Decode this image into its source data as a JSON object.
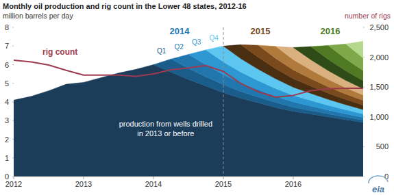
{
  "chart_data": {
    "type": "area",
    "title": "Monthly oil production and rig count in the Lower 48 states, 2012-16",
    "ylabel": "million barrels per day",
    "y2label": "number of rigs",
    "x": [
      2012,
      2012.25,
      2012.5,
      2012.75,
      2013,
      2013.25,
      2013.5,
      2013.75,
      2014,
      2014.25,
      2014.5,
      2014.75,
      2015,
      2015.25,
      2015.5,
      2015.75,
      2016,
      2016.25,
      2016.5,
      2016.75,
      2017
    ],
    "xlim": [
      2012,
      2017
    ],
    "xticks": [
      2012,
      2013,
      2014,
      2015,
      2016
    ],
    "ylim": [
      0,
      8
    ],
    "yticks": [
      0,
      1,
      2,
      3,
      4,
      5,
      6,
      7,
      8
    ],
    "y2lim": [
      0,
      2500
    ],
    "y2ticks": [
      0,
      500,
      {
        "value": 1000,
        "label": "1,000"
      },
      {
        "value": 1500,
        "label": "1,500"
      },
      {
        "value": 2000,
        "label": "2,000"
      },
      {
        "value": 2500,
        "label": "2,500"
      }
    ],
    "stacked": true,
    "grid": false,
    "series": [
      {
        "name": "production from wells drilled in 2013 or before",
        "color": "#1c3d5a",
        "values": [
          4.1,
          4.3,
          4.6,
          4.95,
          5.05,
          5.3,
          5.55,
          5.75,
          6.0,
          5.6,
          5.2,
          4.85,
          4.5,
          4.2,
          3.95,
          3.7,
          3.5,
          3.35,
          3.2,
          3.05,
          2.9
        ]
      },
      {
        "name": "Q1",
        "color": "#1a5c8a",
        "values": [
          null,
          null,
          null,
          null,
          null,
          null,
          null,
          null,
          0,
          0.7,
          0.6,
          0.5,
          0.43,
          0.36,
          0.31,
          0.27,
          0.22,
          0.19,
          0.16,
          0.14,
          0.12
        ]
      },
      {
        "name": "Q2",
        "color": "#2177ad",
        "values": [
          null,
          null,
          null,
          null,
          null,
          null,
          null,
          null,
          null,
          0,
          0.75,
          0.64,
          0.54,
          0.46,
          0.39,
          0.33,
          0.28,
          0.24,
          0.2,
          0.17,
          0.15
        ]
      },
      {
        "name": "Q3",
        "color": "#2d97d2",
        "values": [
          null,
          null,
          null,
          null,
          null,
          null,
          null,
          null,
          null,
          null,
          0,
          0.8,
          0.68,
          0.58,
          0.49,
          0.42,
          0.35,
          0.3,
          0.26,
          0.22,
          0.19
        ]
      },
      {
        "name": "Q4",
        "color": "#5cc6f0",
        "values": [
          null,
          null,
          null,
          null,
          null,
          null,
          null,
          null,
          null,
          null,
          null,
          0,
          0.85,
          0.72,
          0.61,
          0.52,
          0.44,
          0.38,
          0.32,
          0.27,
          0.23
        ]
      },
      {
        "color": "#4a2e12",
        "values": [
          null,
          null,
          null,
          null,
          null,
          null,
          null,
          null,
          null,
          null,
          null,
          null,
          0,
          0.75,
          0.64,
          0.54,
          0.46,
          0.39,
          0.33,
          0.28,
          0.24
        ]
      },
      {
        "color": "#7a4a1c",
        "values": [
          null,
          null,
          null,
          null,
          null,
          null,
          null,
          null,
          null,
          null,
          null,
          null,
          null,
          0,
          0.65,
          0.55,
          0.47,
          0.4,
          0.34,
          0.29,
          0.25
        ]
      },
      {
        "color": "#b07a3c",
        "values": [
          null,
          null,
          null,
          null,
          null,
          null,
          null,
          null,
          null,
          null,
          null,
          null,
          null,
          null,
          0,
          0.65,
          0.55,
          0.47,
          0.4,
          0.34,
          0.29
        ]
      },
      {
        "color": "#d9b07e",
        "values": [
          null,
          null,
          null,
          null,
          null,
          null,
          null,
          null,
          null,
          null,
          null,
          null,
          null,
          null,
          null,
          0,
          0.65,
          0.55,
          0.47,
          0.4,
          0.34
        ]
      },
      {
        "color": "#2f4b17",
        "values": [
          null,
          null,
          null,
          null,
          null,
          null,
          null,
          null,
          null,
          null,
          null,
          null,
          null,
          null,
          null,
          null,
          0,
          0.7,
          0.6,
          0.51,
          0.43
        ]
      },
      {
        "color": "#4f7a23",
        "values": [
          null,
          null,
          null,
          null,
          null,
          null,
          null,
          null,
          null,
          null,
          null,
          null,
          null,
          null,
          null,
          null,
          null,
          0,
          0.75,
          0.64,
          0.54
        ]
      },
      {
        "color": "#7ea84a",
        "values": [
          null,
          null,
          null,
          null,
          null,
          null,
          null,
          null,
          null,
          null,
          null,
          null,
          null,
          null,
          null,
          null,
          null,
          null,
          0,
          0.8,
          0.68
        ]
      },
      {
        "color": "#b4d88c",
        "values": [
          null,
          null,
          null,
          null,
          null,
          null,
          null,
          null,
          null,
          null,
          null,
          null,
          null,
          null,
          null,
          null,
          null,
          null,
          null,
          0,
          0.9
        ]
      },
      {
        "name": "rig count",
        "type": "line",
        "axis": "y2",
        "color": "#9e3a4f",
        "values": [
          1950,
          1920,
          1870,
          1780,
          1700,
          1700,
          1700,
          1680,
          1720,
          1790,
          1820,
          1860,
          1760,
          1560,
          1420,
          1330,
          1360,
          1440,
          1470,
          1480,
          1480
        ]
      }
    ],
    "annotations": [
      {
        "text": "2014",
        "color": "#1f77b4"
      },
      {
        "text": "2015",
        "color": "#7a4a1c"
      },
      {
        "text": "2016",
        "color": "#4c7d22"
      }
    ],
    "reference_lines": [
      {
        "x": 2015,
        "line_style": "dashed"
      }
    ],
    "logo": "eia"
  }
}
